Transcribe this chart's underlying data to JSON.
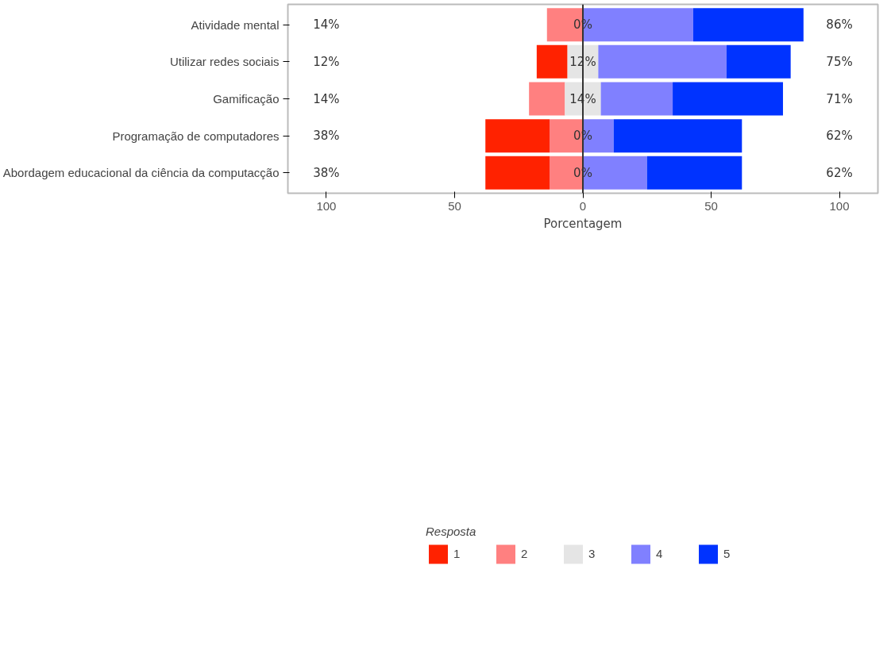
{
  "chart_data": {
    "type": "bar",
    "orientation": "horizontal",
    "xlabel": "Porcentagem",
    "legend_title": "Resposta",
    "legend": "bottom",
    "grid": false,
    "categories": [
      "Atividade mental",
      "Utilizar redes sociais",
      "Gamificação",
      "Programação de computadores",
      "Abordagem educacional da ciência da computacção"
    ],
    "series": [
      {
        "name": "1",
        "color": "#ff2200",
        "values": [
          0,
          12,
          0,
          25,
          25
        ],
        "base": [
          null,
          -18,
          null,
          -38,
          -38
        ]
      },
      {
        "name": "2",
        "color": "#ff8080",
        "values": [
          14,
          0,
          14,
          13,
          13
        ],
        "base": [
          -14,
          null,
          -21,
          -13,
          -13
        ]
      },
      {
        "name": "3",
        "color": "#e5e5e5",
        "values": [
          0,
          12,
          14,
          0,
          0
        ],
        "base": [
          null,
          -6,
          -7,
          null,
          null
        ]
      },
      {
        "name": "4",
        "color": "#8080ff",
        "values": [
          43,
          50,
          28,
          12,
          25
        ],
        "base": [
          0,
          6,
          7,
          0,
          0
        ]
      },
      {
        "name": "5",
        "color": "#0033ff",
        "values": [
          43,
          25,
          43,
          50,
          37
        ],
        "base": [
          43,
          56,
          35,
          12,
          25
        ]
      }
    ],
    "xlim": [
      -115,
      115
    ],
    "xticks": [
      {
        "value": -100,
        "label": "100"
      },
      {
        "value": -50,
        "label": "50"
      },
      0,
      50,
      100
    ],
    "ref_lines": [
      {
        "axis": "x",
        "value": 0,
        "color": "#333333"
      }
    ],
    "annotations": [
      "14%",
      "0%",
      "86%",
      "12%",
      "12%",
      "75%",
      "14%",
      "14%",
      "71%",
      "38%",
      "0%",
      "62%",
      "38%",
      "0%",
      "62%"
    ]
  }
}
